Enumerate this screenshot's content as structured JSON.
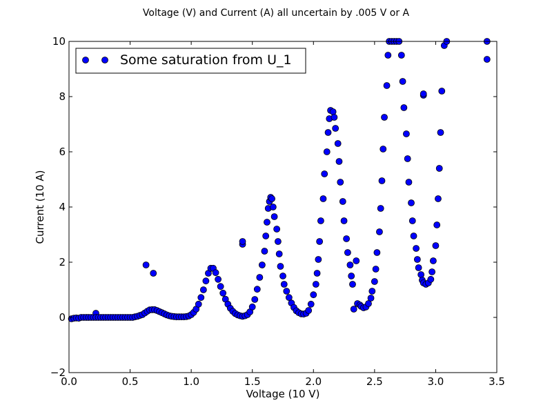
{
  "chart_data": {
    "type": "scatter",
    "title": "Voltage (V) and Current (A) all uncertain by .005 V or A",
    "xlabel": "Voltage (10 V)",
    "ylabel": "Current (10 A)",
    "xlim": [
      0.0,
      3.5
    ],
    "ylim": [
      -2,
      10
    ],
    "xticks": [
      "0.0",
      "0.5",
      "1.0",
      "1.5",
      "2.0",
      "2.5",
      "3.0",
      "3.5"
    ],
    "yticks": [
      "−2",
      "0",
      "2",
      "4",
      "6",
      "8",
      "10"
    ],
    "grid": false,
    "legend": {
      "position": "top-left"
    },
    "marker_color": "#0000ff",
    "series": [
      {
        "name": "Some saturation from U_1",
        "points": [
          [
            0.02,
            -0.05
          ],
          [
            0.04,
            -0.03
          ],
          [
            0.06,
            -0.02
          ],
          [
            0.08,
            -0.03
          ],
          [
            0.1,
            0.0
          ],
          [
            0.12,
            0.0
          ],
          [
            0.14,
            0.0
          ],
          [
            0.16,
            0.0
          ],
          [
            0.18,
            0.0
          ],
          [
            0.2,
            0.0
          ],
          [
            0.22,
            0.15
          ],
          [
            0.22,
            0.0
          ],
          [
            0.24,
            0.0
          ],
          [
            0.26,
            0.0
          ],
          [
            0.28,
            0.0
          ],
          [
            0.3,
            0.0
          ],
          [
            0.32,
            0.0
          ],
          [
            0.34,
            0.0
          ],
          [
            0.36,
            0.0
          ],
          [
            0.38,
            0.0
          ],
          [
            0.4,
            0.0
          ],
          [
            0.42,
            0.0
          ],
          [
            0.44,
            0.0
          ],
          [
            0.46,
            0.0
          ],
          [
            0.48,
            0.0
          ],
          [
            0.5,
            0.0
          ],
          [
            0.52,
            0.0
          ],
          [
            0.54,
            0.02
          ],
          [
            0.56,
            0.04
          ],
          [
            0.58,
            0.07
          ],
          [
            0.6,
            0.1
          ],
          [
            0.62,
            0.16
          ],
          [
            0.63,
            1.9
          ],
          [
            0.64,
            0.22
          ],
          [
            0.66,
            0.27
          ],
          [
            0.68,
            0.28
          ],
          [
            0.69,
            1.6
          ],
          [
            0.7,
            0.28
          ],
          [
            0.72,
            0.25
          ],
          [
            0.74,
            0.21
          ],
          [
            0.76,
            0.17
          ],
          [
            0.78,
            0.13
          ],
          [
            0.8,
            0.09
          ],
          [
            0.82,
            0.06
          ],
          [
            0.84,
            0.04
          ],
          [
            0.86,
            0.03
          ],
          [
            0.88,
            0.02
          ],
          [
            0.9,
            0.02
          ],
          [
            0.92,
            0.02
          ],
          [
            0.94,
            0.02
          ],
          [
            0.96,
            0.03
          ],
          [
            0.98,
            0.05
          ],
          [
            1.0,
            0.1
          ],
          [
            1.02,
            0.18
          ],
          [
            1.04,
            0.3
          ],
          [
            1.06,
            0.48
          ],
          [
            1.08,
            0.72
          ],
          [
            1.1,
            1.0
          ],
          [
            1.12,
            1.32
          ],
          [
            1.14,
            1.6
          ],
          [
            1.16,
            1.78
          ],
          [
            1.18,
            1.78
          ],
          [
            1.2,
            1.62
          ],
          [
            1.22,
            1.38
          ],
          [
            1.24,
            1.12
          ],
          [
            1.26,
            0.88
          ],
          [
            1.28,
            0.66
          ],
          [
            1.3,
            0.48
          ],
          [
            1.32,
            0.33
          ],
          [
            1.34,
            0.22
          ],
          [
            1.36,
            0.14
          ],
          [
            1.38,
            0.09
          ],
          [
            1.4,
            0.06
          ],
          [
            1.42,
            2.65
          ],
          [
            1.42,
            2.75
          ],
          [
            1.42,
            0.04
          ],
          [
            1.44,
            0.06
          ],
          [
            1.46,
            0.1
          ],
          [
            1.48,
            0.2
          ],
          [
            1.5,
            0.38
          ],
          [
            1.52,
            0.65
          ],
          [
            1.54,
            1.02
          ],
          [
            1.56,
            1.45
          ],
          [
            1.58,
            1.9
          ],
          [
            1.6,
            2.4
          ],
          [
            1.61,
            2.95
          ],
          [
            1.62,
            3.45
          ],
          [
            1.63,
            3.95
          ],
          [
            1.64,
            4.2
          ],
          [
            1.65,
            4.35
          ],
          [
            1.66,
            4.3
          ],
          [
            1.67,
            4.0
          ],
          [
            1.68,
            3.65
          ],
          [
            1.7,
            3.2
          ],
          [
            1.71,
            2.75
          ],
          [
            1.72,
            2.3
          ],
          [
            1.73,
            1.85
          ],
          [
            1.75,
            1.5
          ],
          [
            1.76,
            1.2
          ],
          [
            1.78,
            0.95
          ],
          [
            1.8,
            0.72
          ],
          [
            1.82,
            0.52
          ],
          [
            1.84,
            0.36
          ],
          [
            1.86,
            0.24
          ],
          [
            1.88,
            0.17
          ],
          [
            1.9,
            0.13
          ],
          [
            1.92,
            0.12
          ],
          [
            1.94,
            0.15
          ],
          [
            1.96,
            0.25
          ],
          [
            1.98,
            0.48
          ],
          [
            2.0,
            0.82
          ],
          [
            2.02,
            1.2
          ],
          [
            2.03,
            1.6
          ],
          [
            2.04,
            2.1
          ],
          [
            2.05,
            2.75
          ],
          [
            2.06,
            3.5
          ],
          [
            2.08,
            4.3
          ],
          [
            2.09,
            5.2
          ],
          [
            2.11,
            6.0
          ],
          [
            2.12,
            6.7
          ],
          [
            2.13,
            7.2
          ],
          [
            2.14,
            7.5
          ],
          [
            2.16,
            7.45
          ],
          [
            2.17,
            7.25
          ],
          [
            2.18,
            6.85
          ],
          [
            2.2,
            6.3
          ],
          [
            2.21,
            5.65
          ],
          [
            2.22,
            4.9
          ],
          [
            2.24,
            4.2
          ],
          [
            2.25,
            3.5
          ],
          [
            2.27,
            2.85
          ],
          [
            2.28,
            2.35
          ],
          [
            2.3,
            1.9
          ],
          [
            2.31,
            1.5
          ],
          [
            2.32,
            1.2
          ],
          [
            2.33,
            0.3
          ],
          [
            2.35,
            2.05
          ],
          [
            2.36,
            0.5
          ],
          [
            2.38,
            0.45
          ],
          [
            2.39,
            0.4
          ],
          [
            2.41,
            0.35
          ],
          [
            2.43,
            0.38
          ],
          [
            2.45,
            0.5
          ],
          [
            2.47,
            0.7
          ],
          [
            2.48,
            0.95
          ],
          [
            2.5,
            1.3
          ],
          [
            2.51,
            1.75
          ],
          [
            2.52,
            2.35
          ],
          [
            2.54,
            3.1
          ],
          [
            2.55,
            3.95
          ],
          [
            2.56,
            4.95
          ],
          [
            2.57,
            6.1
          ],
          [
            2.58,
            7.25
          ],
          [
            2.6,
            8.4
          ],
          [
            2.61,
            9.5
          ],
          [
            2.62,
            10.0
          ],
          [
            2.64,
            10.0
          ],
          [
            2.66,
            10.0
          ],
          [
            2.68,
            10.0
          ],
          [
            2.7,
            10.0
          ],
          [
            2.72,
            9.5
          ],
          [
            2.73,
            8.55
          ],
          [
            2.74,
            7.6
          ],
          [
            2.76,
            6.65
          ],
          [
            2.77,
            5.75
          ],
          [
            2.78,
            4.9
          ],
          [
            2.8,
            4.15
          ],
          [
            2.81,
            3.5
          ],
          [
            2.82,
            2.95
          ],
          [
            2.84,
            2.5
          ],
          [
            2.85,
            2.1
          ],
          [
            2.86,
            1.8
          ],
          [
            2.88,
            1.55
          ],
          [
            2.89,
            1.35
          ],
          [
            2.9,
            1.25
          ],
          [
            2.9,
            8.05
          ],
          [
            2.9,
            8.1
          ],
          [
            2.92,
            1.2
          ],
          [
            2.94,
            1.25
          ],
          [
            2.96,
            1.38
          ],
          [
            2.97,
            1.65
          ],
          [
            2.98,
            2.05
          ],
          [
            3.0,
            2.6
          ],
          [
            3.01,
            3.35
          ],
          [
            3.02,
            4.3
          ],
          [
            3.03,
            5.4
          ],
          [
            3.04,
            6.7
          ],
          [
            3.05,
            8.2
          ],
          [
            3.07,
            9.85
          ],
          [
            3.09,
            10.0
          ],
          [
            3.42,
            10.0
          ],
          [
            3.42,
            9.35
          ]
        ]
      }
    ]
  }
}
